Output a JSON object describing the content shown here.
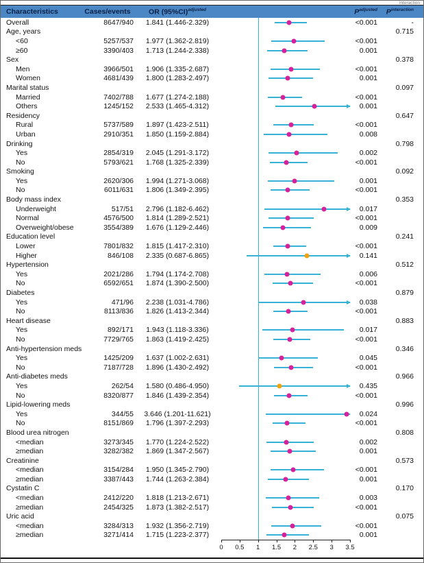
{
  "page": {
    "top_note": "interaction"
  },
  "chart_data": {
    "type": "forest",
    "columns": {
      "characteristics": "Characteristics",
      "cases": "Cases/events",
      "or": "OR (95%CI)",
      "or_sup": "adjusted",
      "p": "P",
      "p_adj_sup": "adjusted",
      "p_int_sup": "interaction"
    },
    "axis": {
      "min": 0,
      "max": 3.5,
      "ticks": [
        0,
        0.5,
        1,
        1.5,
        2,
        2.5,
        3,
        3.5
      ],
      "ref_line": 1
    },
    "colors": {
      "header_bg": "#4b86c5",
      "marker": "#d6219c",
      "marker_ns": "#f0a30a",
      "ci_line": "#35b2d5"
    },
    "rows": [
      {
        "label": "Overall",
        "indent": 0,
        "cases": "8647/940",
        "or_text": "1.841 (1.446-2.329)",
        "or": 1.841,
        "lo": 1.446,
        "hi": 2.329,
        "p_adj": "<0.001",
        "p_int": "-"
      },
      {
        "label": "Age, years",
        "group": true,
        "p_int": "0.715"
      },
      {
        "label": "<60",
        "indent": 1,
        "cases": "5257/537",
        "or_text": "1.977 (1.362-2.819)",
        "or": 1.977,
        "lo": 1.362,
        "hi": 2.819,
        "p_adj": "<0.001"
      },
      {
        "label": "≥60",
        "indent": 1,
        "cases": "3390/403",
        "or_text": "1.713 (1.244-2.338)",
        "or": 1.713,
        "lo": 1.244,
        "hi": 2.338,
        "p_adj": "0.001"
      },
      {
        "label": "Sex",
        "group": true,
        "p_int": "0.378"
      },
      {
        "label": "Men",
        "indent": 1,
        "cases": "3966/501",
        "or_text": "1.906 (1.335-2.687)",
        "or": 1.906,
        "lo": 1.335,
        "hi": 2.687,
        "p_adj": "<0.001"
      },
      {
        "label": "Women",
        "indent": 1,
        "cases": "4681/439",
        "or_text": "1.800 (1.283-2.497)",
        "or": 1.8,
        "lo": 1.283,
        "hi": 2.497,
        "p_adj": "0.001"
      },
      {
        "label": "Marital status",
        "group": true,
        "p_int": "0.097"
      },
      {
        "label": "Married",
        "indent": 1,
        "cases": "7402/788",
        "or_text": "1.677 (1.274-2.188)",
        "or": 1.677,
        "lo": 1.274,
        "hi": 2.188,
        "p_adj": "<0.001"
      },
      {
        "label": "Others",
        "indent": 1,
        "cases": "1245/152",
        "or_text": "2.533 (1.465-4.312)",
        "or": 2.533,
        "lo": 1.465,
        "hi": 4.312,
        "p_adj": "0.001"
      },
      {
        "label": "Residency",
        "group": true,
        "p_int": "0.647"
      },
      {
        "label": "Rural",
        "indent": 1,
        "cases": "5737/589",
        "or_text": "1.897 (1.423-2.511)",
        "or": 1.897,
        "lo": 1.423,
        "hi": 2.511,
        "p_adj": "<0.001"
      },
      {
        "label": "Urban",
        "indent": 1,
        "cases": "2910/351",
        "or_text": "1.850 (1.159-2.884)",
        "or": 1.85,
        "lo": 1.159,
        "hi": 2.884,
        "p_adj": "0.008"
      },
      {
        "label": "Drinking",
        "group": true,
        "p_int": "0.798"
      },
      {
        "label": "Yes",
        "indent": 1,
        "cases": "2854/319",
        "or_text": "2.045 (1.291-3.172)",
        "or": 2.045,
        "lo": 1.291,
        "hi": 3.172,
        "p_adj": "0.002"
      },
      {
        "label": "No",
        "indent": 1,
        "cases": "5793/621",
        "or_text": "1.768 (1.325-2.339)",
        "or": 1.768,
        "lo": 1.325,
        "hi": 2.339,
        "p_adj": "<0.001"
      },
      {
        "label": "Smoking",
        "group": true,
        "p_int": "0.092"
      },
      {
        "label": "Yes",
        "indent": 1,
        "cases": "2620/306",
        "or_text": "1.994 (1.271-3.068)",
        "or": 1.994,
        "lo": 1.271,
        "hi": 3.068,
        "p_adj": "0.001"
      },
      {
        "label": "No",
        "indent": 1,
        "cases": "6011/631",
        "or_text": "1.806 (1.349-2.395)",
        "or": 1.806,
        "lo": 1.349,
        "hi": 2.395,
        "p_adj": "<0.001"
      },
      {
        "label": "Body mass index",
        "group": true,
        "p_int": "0.353"
      },
      {
        "label": "Underweight",
        "indent": 1,
        "cases": "517/51",
        "or_text": "2.796 (1.182-6.462)",
        "or": 2.796,
        "lo": 1.182,
        "hi": 6.462,
        "p_adj": "0.017"
      },
      {
        "label": "Normal",
        "indent": 1,
        "cases": "4576/500",
        "or_text": "1.814 (1.289-2.521)",
        "or": 1.814,
        "lo": 1.289,
        "hi": 2.521,
        "p_adj": "<0.001"
      },
      {
        "label": "Overweight/obese",
        "indent": 1,
        "cases": "3554/389",
        "or_text": "1.676 (1.129-2.446)",
        "or": 1.676,
        "lo": 1.129,
        "hi": 2.446,
        "p_adj": "0.009"
      },
      {
        "label": "Education level",
        "group": true,
        "p_int": "0.241"
      },
      {
        "label": "Lower",
        "indent": 1,
        "cases": "7801/832",
        "or_text": "1.815 (1.417-2.310)",
        "or": 1.815,
        "lo": 1.417,
        "hi": 2.31,
        "p_adj": "<0.001"
      },
      {
        "label": "Higher",
        "indent": 1,
        "cases": "846/108",
        "or_text": "2.335 (0.687-6.865)",
        "or": 2.335,
        "lo": 0.687,
        "hi": 6.865,
        "p_adj": "0.141",
        "ns": true
      },
      {
        "label": "Hypertension",
        "group": true,
        "p_int": "0.512"
      },
      {
        "label": "Yes",
        "indent": 1,
        "cases": "2021/286",
        "or_text": "1.794 (1.174-2.708)",
        "or": 1.794,
        "lo": 1.174,
        "hi": 2.708,
        "p_adj": "0.006"
      },
      {
        "label": "No",
        "indent": 1,
        "cases": "6592/651",
        "or_text": "1.874 (1.390-2.500)",
        "or": 1.874,
        "lo": 1.39,
        "hi": 2.5,
        "p_adj": "<0.001"
      },
      {
        "label": "Diabetes",
        "group": true,
        "p_int": "0.879"
      },
      {
        "label": "Yes",
        "indent": 1,
        "cases": "471/96",
        "or_text": "2.238 (1.031-4.786)",
        "or": 2.238,
        "lo": 1.031,
        "hi": 4.786,
        "p_adj": "0.038"
      },
      {
        "label": "No",
        "indent": 1,
        "cases": "8113/836",
        "or_text": "1.826 (1.413-2.344)",
        "or": 1.826,
        "lo": 1.413,
        "hi": 2.344,
        "p_adj": "<0.001"
      },
      {
        "label": "Heart disease",
        "group": true,
        "p_int": "0.883"
      },
      {
        "label": "Yes",
        "indent": 1,
        "cases": "892/171",
        "or_text": "1.943 (1.118-3.336)",
        "or": 1.943,
        "lo": 1.118,
        "hi": 3.336,
        "p_adj": "0.017"
      },
      {
        "label": "No",
        "indent": 1,
        "cases": "7729/765",
        "or_text": "1.863 (1.419-2.425)",
        "or": 1.863,
        "lo": 1.419,
        "hi": 2.425,
        "p_adj": "<0.001"
      },
      {
        "label": "Anti-hypertension meds",
        "group": true,
        "p_int": "0.346"
      },
      {
        "label": "Yes",
        "indent": 1,
        "cases": "1425/209",
        "or_text": "1.637 (1.002-2.631)",
        "or": 1.637,
        "lo": 1.002,
        "hi": 2.631,
        "p_adj": "0.045"
      },
      {
        "label": "No",
        "indent": 1,
        "cases": "7187/728",
        "or_text": "1.896 (1.430-2.492)",
        "or": 1.896,
        "lo": 1.43,
        "hi": 2.492,
        "p_adj": "<0.001"
      },
      {
        "label": "Anti-diabetes meds",
        "group": true,
        "p_int": "0.966"
      },
      {
        "label": "Yes",
        "indent": 1,
        "cases": "262/54",
        "or_text": "1.580 (0.486-4.950)",
        "or": 1.58,
        "lo": 0.486,
        "hi": 4.95,
        "p_adj": "0.435",
        "ns": true
      },
      {
        "label": "No",
        "indent": 1,
        "cases": "8320/877",
        "or_text": "1.846 (1.439-2.354)",
        "or": 1.846,
        "lo": 1.439,
        "hi": 2.354,
        "p_adj": "<0.001"
      },
      {
        "label": "Lipid-lowering meds",
        "group": true,
        "p_int": "0.996"
      },
      {
        "label": "Yes",
        "indent": 1,
        "cases": "344/55",
        "or_text": "3.646 (1.201-11.621)",
        "or": 3.646,
        "lo": 1.201,
        "hi": 11.621,
        "p_adj": "0.024"
      },
      {
        "label": "No",
        "indent": 1,
        "cases": "8151/869",
        "or_text": "1.796 (1.397-2.293)",
        "or": 1.796,
        "lo": 1.397,
        "hi": 2.293,
        "p_adj": "<0.001"
      },
      {
        "label": "Blood urea nitrogen",
        "group": true,
        "p_int": "0.808"
      },
      {
        "label": "<median",
        "indent": 1,
        "cases": "3273/345",
        "or_text": "1.770 (1.224-2.522)",
        "or": 1.77,
        "lo": 1.224,
        "hi": 2.522,
        "p_adj": "0.002"
      },
      {
        "label": "≥median",
        "indent": 1,
        "cases": "3282/382",
        "or_text": "1.869 (1.347-2.567)",
        "or": 1.869,
        "lo": 1.347,
        "hi": 2.567,
        "p_adj": "0.001"
      },
      {
        "label": "Creatinine",
        "group": true,
        "p_int": "0.573"
      },
      {
        "label": "<median",
        "indent": 1,
        "cases": "3154/284",
        "or_text": "1.950 (1.345-2.790)",
        "or": 1.95,
        "lo": 1.345,
        "hi": 2.79,
        "p_adj": "<0.001"
      },
      {
        "label": "≥median",
        "indent": 1,
        "cases": "3387/443",
        "or_text": "1.744 (1.263-2.384)",
        "or": 1.744,
        "lo": 1.263,
        "hi": 2.384,
        "p_adj": "0.001"
      },
      {
        "label": "Cystatin C",
        "group": true,
        "p_int": "0.170"
      },
      {
        "label": "<median",
        "indent": 1,
        "cases": "2412/220",
        "or_text": "1.818 (1.213-2.671)",
        "or": 1.818,
        "lo": 1.213,
        "hi": 2.671,
        "p_adj": "0.003"
      },
      {
        "label": "≥median",
        "indent": 1,
        "cases": "2454/325",
        "or_text": "1.873 (1.382-2.517)",
        "or": 1.873,
        "lo": 1.382,
        "hi": 2.517,
        "p_adj": "<0.001"
      },
      {
        "label": "Uric acid",
        "group": true,
        "p_int": "0.075"
      },
      {
        "label": "<median",
        "indent": 1,
        "cases": "3284/313",
        "or_text": "1.932 (1.356-2.719)",
        "or": 1.932,
        "lo": 1.356,
        "hi": 2.719,
        "p_adj": "<0.001"
      },
      {
        "label": "≥median",
        "indent": 1,
        "cases": "3271/414",
        "or_text": "1.715 (1.223-2.377)",
        "or": 1.715,
        "lo": 1.223,
        "hi": 2.377,
        "p_adj": "0.001"
      }
    ]
  }
}
